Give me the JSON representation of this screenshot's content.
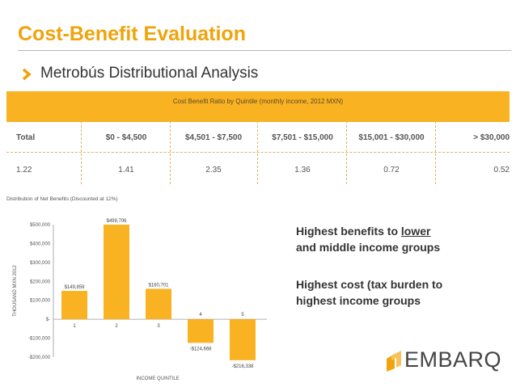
{
  "slide": {
    "title": "Cost-Benefit Evaluation",
    "subtitle": "Metrobús Distributional Analysis"
  },
  "table": {
    "caption": "Cost Benefit Ratio by Quintile (monthly income, 2012 MXN)",
    "headers": [
      "Total",
      "$0 - $4,500",
      "$4,501 - $7,500",
      "$7,501 - $15,000",
      "$15,001 - $30,000",
      "> $30,000"
    ],
    "values": [
      "1.22",
      "1.41",
      "2.35",
      "1.36",
      "0.72",
      "0.52"
    ]
  },
  "notes": {
    "line1_a": "Highest benefits to ",
    "line1_b": "lower",
    "line2": "and middle income groups",
    "line3": "Highest cost (tax burden to",
    "line4": "highest income groups"
  },
  "logo": {
    "text": "EMBARQ",
    "color": "#f0a30a",
    "icon": "embarq-logo-icon"
  },
  "colors": {
    "accent": "#f0a30a",
    "bar": "#f9b221"
  },
  "chart_data": {
    "type": "bar",
    "title": "Distribution of Net Benefits (Discounted at 12%)",
    "xlabel": "INCOME QUINTILE",
    "ylabel": "THOUSAND MXN 2012",
    "categories": [
      "1",
      "2",
      "3",
      "4",
      "5"
    ],
    "values": [
      149859,
      499706,
      160701,
      -124668,
      -216338
    ],
    "data_labels": [
      "$149,859",
      "$499,706",
      "$160,701",
      "-$124,668",
      "-$216,338"
    ],
    "yticks": [
      500000,
      400000,
      300000,
      200000,
      100000,
      0,
      -100000,
      -200000
    ],
    "ytick_labels": [
      "$500,000",
      "$400,000",
      "$300,000",
      "$200,000",
      "$100,000",
      "$-",
      "-$100,000",
      "-$200,000"
    ],
    "ylim": [
      -200000,
      500000
    ],
    "grid": false
  }
}
